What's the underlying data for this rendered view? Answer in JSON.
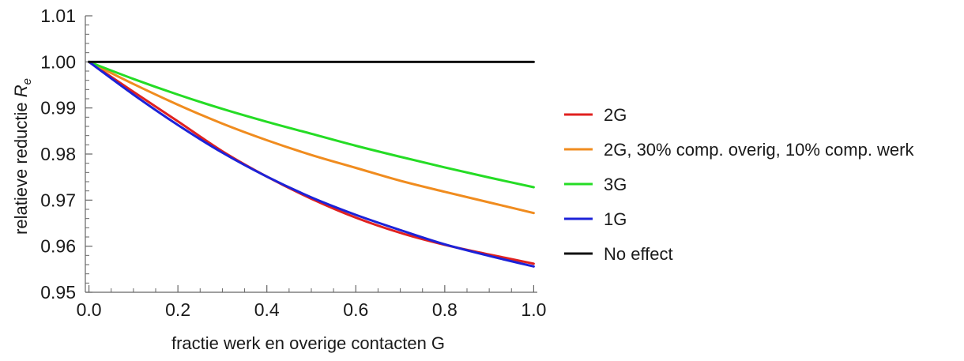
{
  "chart_data": {
    "type": "line",
    "title": "",
    "xlabel": "fractie werk en overige contacten G",
    "ylabel_prefix": "relatieve reductie ",
    "ylabel_symbol": "R",
    "ylabel_subscript": "e",
    "xlim": [
      0.0,
      1.0
    ],
    "ylim": [
      0.95,
      1.01
    ],
    "x_ticks": [
      0.0,
      0.2,
      0.4,
      0.6,
      0.8,
      1.0
    ],
    "x_tick_labels": [
      "0.0",
      "0.2",
      "0.4",
      "0.6",
      "0.8",
      "1.0"
    ],
    "y_ticks": [
      0.95,
      0.96,
      0.97,
      0.98,
      0.99,
      1.0,
      1.01
    ],
    "y_tick_labels": [
      "0.95",
      "0.96",
      "0.97",
      "0.98",
      "0.99",
      "1.00",
      "1.01"
    ],
    "grid": false,
    "legend_position": "right",
    "x": [
      0.0,
      0.1,
      0.2,
      0.3,
      0.4,
      0.5,
      0.6,
      0.7,
      0.8,
      0.9,
      1.0
    ],
    "series": [
      {
        "name": "2G",
        "color": "#e0211f",
        "values": [
          1.0,
          0.9935,
          0.9871,
          0.9806,
          0.9751,
          0.9703,
          0.9662,
          0.9629,
          0.9603,
          0.9582,
          0.9562
        ]
      },
      {
        "name": "2G, 30% comp. overig, 10% comp. werk",
        "color": "#f08c1f",
        "values": [
          1.0,
          0.9952,
          0.9907,
          0.9866,
          0.983,
          0.9798,
          0.977,
          0.9742,
          0.9718,
          0.9695,
          0.9672
        ]
      },
      {
        "name": "3G",
        "color": "#25dc25",
        "values": [
          1.0,
          0.9963,
          0.9929,
          0.9898,
          0.987,
          0.9844,
          0.9818,
          0.9794,
          0.9771,
          0.9749,
          0.9728
        ]
      },
      {
        "name": "1G",
        "color": "#1c22d8",
        "values": [
          1.0,
          0.9929,
          0.9863,
          0.9803,
          0.9751,
          0.9706,
          0.9668,
          0.9635,
          0.9604,
          0.9579,
          0.9556
        ]
      },
      {
        "name": "No effect",
        "color": "#111111",
        "values": [
          1.0,
          1.0,
          1.0,
          1.0,
          1.0,
          1.0,
          1.0,
          1.0,
          1.0,
          1.0,
          1.0
        ]
      }
    ]
  }
}
